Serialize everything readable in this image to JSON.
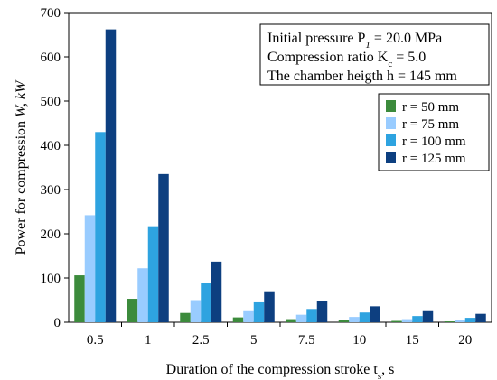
{
  "chart_data": {
    "type": "bar",
    "categories": [
      "0.5",
      "1",
      "2.5",
      "5",
      "7.5",
      "10",
      "15",
      "20"
    ],
    "series": [
      {
        "name": "r = 50 mm",
        "values": [
          106,
          53,
          21,
          11,
          7,
          5,
          3,
          2
        ]
      },
      {
        "name": "r = 75 mm",
        "values": [
          242,
          122,
          50,
          25,
          17,
          12,
          7,
          5
        ]
      },
      {
        "name": "r = 100 mm",
        "values": [
          430,
          217,
          88,
          45,
          30,
          22,
          14,
          10
        ]
      },
      {
        "name": "r = 125 mm",
        "values": [
          662,
          335,
          137,
          70,
          48,
          36,
          25,
          19
        ]
      }
    ],
    "colors": [
      "#3c8b3c",
      "#99ccff",
      "#2ea3e0",
      "#0d3f80"
    ],
    "yticks": [
      0,
      100,
      200,
      300,
      400,
      500,
      600,
      700
    ],
    "ylim": [
      0,
      700
    ],
    "xlabel": {
      "main": "Duration of the compression stroke t",
      "sub": "s",
      "tail": ", s"
    },
    "ylabel": {
      "main": "Power for compression ",
      "italic": "W",
      "tail": ", kW"
    },
    "legend_position": "right",
    "grid": {
      "horizontal": false,
      "vertical": false
    },
    "annotation": {
      "line1": {
        "main": "Initial pressure P",
        "sub": "1",
        "tail": " = 20.0 MPa"
      },
      "line2": {
        "main": "Compression ratio K",
        "sub": "c",
        "tail": " = 5.0"
      },
      "line3": {
        "main": "The chamber heigth h",
        "tail": " = 145 mm"
      }
    }
  }
}
